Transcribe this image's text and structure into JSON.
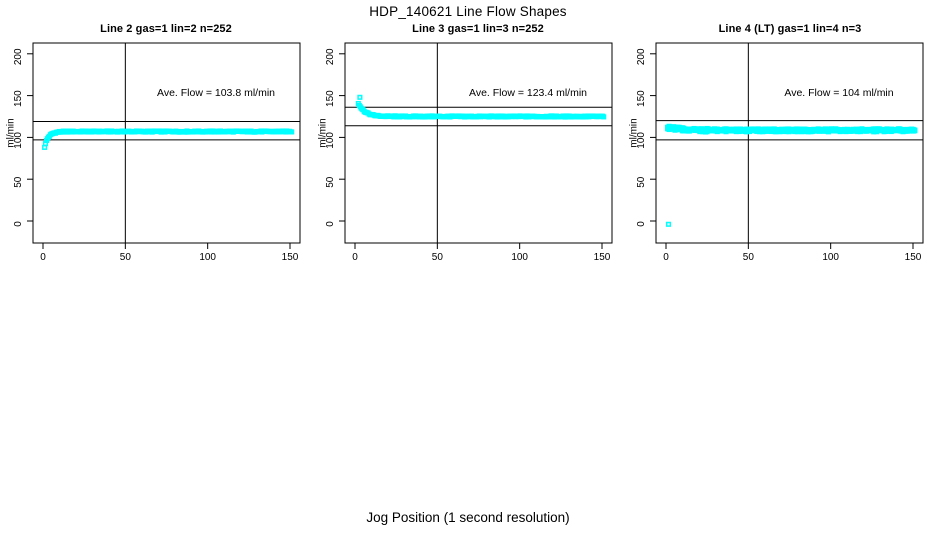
{
  "chart": {
    "title": "HDP_140621  Line Flow Shapes",
    "footer_xlabel": "Jog Position (1 second resolution)",
    "ylabel": "ml/min",
    "marker_color": "#00FFFF",
    "axis_color": "#000000",
    "background_color": "#FFFFFF"
  },
  "chart_data": {
    "type": "scatter",
    "title": "HDP_140621  Line Flow Shapes",
    "xlabel": "Jog Position (1 second resolution)",
    "ylabel": "ml/min",
    "x_ticks": [
      0,
      50,
      100,
      150
    ],
    "y_ticks": [
      0,
      50,
      100,
      150,
      200
    ],
    "xlim": [
      -6,
      156
    ],
    "ylim": [
      -26,
      213
    ],
    "grid": false,
    "vline_x": 50,
    "panels": [
      {
        "title": "Line 2 gas=1 lin=2 n=252",
        "annotation": "Ave. Flow =  103.8  ml/min",
        "ave_flow": 103.8,
        "n": 252,
        "ref_line_upper": 119,
        "ref_line_lower": 97,
        "plateau": 107,
        "start_value": 93,
        "rise_tau": 2.5,
        "trace_x_start": 1.5,
        "trace_x_end": 151,
        "trace_points": 250,
        "jitter": 0.7,
        "traces": 1,
        "outliers": [
          {
            "x": 1,
            "y": 88
          }
        ]
      },
      {
        "title": "Line 3 gas=1 lin=3 n=252",
        "annotation": "Ave. Flow =  123.4  ml/min",
        "ave_flow": 123.4,
        "n": 252,
        "ref_line_upper": 136,
        "ref_line_lower": 114,
        "plateau": 125,
        "start_value": 141,
        "rise_tau": 4,
        "trace_x_start": 2,
        "trace_x_end": 151,
        "trace_points": 250,
        "jitter": 0.7,
        "traces": 1,
        "outliers": [
          {
            "x": 3,
            "y": 148
          }
        ]
      },
      {
        "title": "Line 4 (LT) gas=1 lin=4 n=3",
        "annotation": "Ave. Flow =  104  ml/min",
        "ave_flow": 104,
        "n": 3,
        "ref_line_upper": 120,
        "ref_line_lower": 97,
        "plateau": 108.5,
        "start_value": 112,
        "rise_tau": 8,
        "trace_x_start": 1,
        "trace_x_end": 151,
        "trace_points": 170,
        "jitter": 0.9,
        "traces": 3,
        "outliers": [
          {
            "x": 1.5,
            "y": -4
          }
        ]
      }
    ]
  }
}
